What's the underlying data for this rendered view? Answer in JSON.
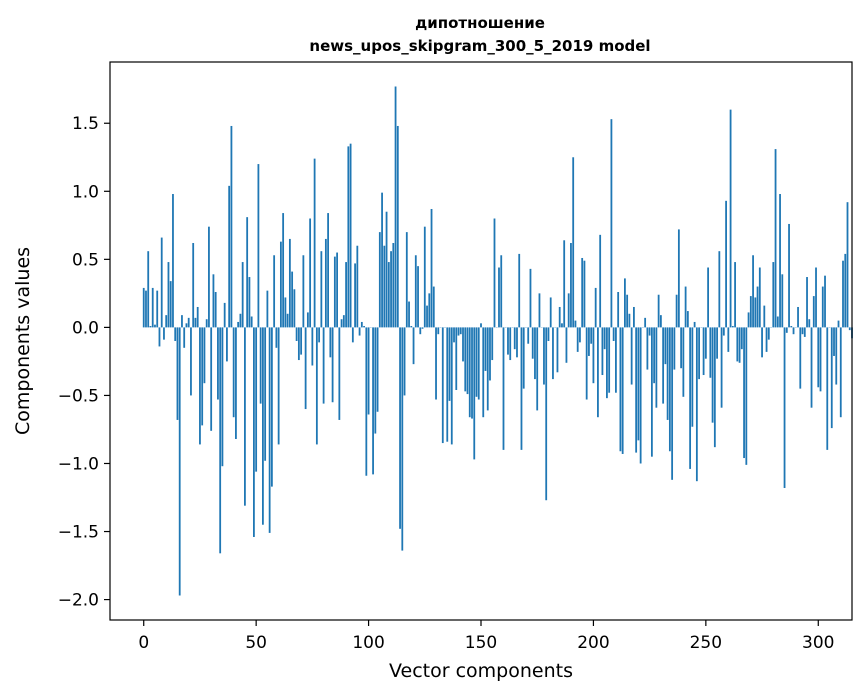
{
  "chart_data": {
    "type": "bar",
    "title_line1": "дипотношение",
    "title_line2": "news_upos_skipgram_300_5_2019 model",
    "xlabel": "Vector components",
    "ylabel": "Components values",
    "xlim": [
      -15,
      315
    ],
    "ylim": [
      -2.15,
      1.95
    ],
    "xticks": [
      0,
      50,
      100,
      150,
      200,
      250,
      300
    ],
    "xtick_labels": [
      "0",
      "50",
      "100",
      "150",
      "200",
      "250",
      "300"
    ],
    "yticks": [
      -2.0,
      -1.5,
      -1.0,
      -0.5,
      0.0,
      0.5,
      1.0,
      1.5
    ],
    "ytick_labels": [
      "−2.0",
      "−1.5",
      "−1.0",
      "−0.5",
      "0.0",
      "0.5",
      "1.0",
      "1.5"
    ],
    "bar_color": "#1f77b4",
    "grid": false,
    "legend": "none",
    "x_start": 0,
    "values": [
      0.29,
      0.27,
      0.56,
      0.01,
      0.29,
      0.02,
      0.27,
      -0.14,
      0.66,
      -0.09,
      0.09,
      0.48,
      0.34,
      0.98,
      -0.1,
      -0.68,
      -1.97,
      0.09,
      -0.15,
      0.03,
      0.07,
      -0.5,
      0.62,
      0.07,
      0.15,
      -0.86,
      -0.72,
      -0.41,
      0.06,
      0.74,
      -0.76,
      0.39,
      0.26,
      -0.53,
      -1.66,
      -1.02,
      0.18,
      -0.25,
      1.04,
      1.48,
      -0.66,
      -0.82,
      0.04,
      0.1,
      0.48,
      -1.31,
      0.81,
      0.37,
      0.08,
      -1.54,
      -1.06,
      1.2,
      -0.56,
      -1.45,
      -0.98,
      0.27,
      -1.51,
      -1.17,
      0.53,
      -0.15,
      -0.86,
      0.63,
      0.84,
      0.22,
      0.1,
      0.65,
      0.41,
      0.28,
      -0.1,
      -0.24,
      -0.2,
      0.53,
      -0.6,
      0.11,
      0.8,
      -0.28,
      1.24,
      -0.86,
      -0.11,
      0.56,
      -0.56,
      0.65,
      0.84,
      -0.22,
      -0.55,
      0.52,
      0.55,
      -0.68,
      0.06,
      0.09,
      0.48,
      1.33,
      1.35,
      -0.11,
      0.47,
      0.6,
      -0.06,
      0.04,
      0.01,
      -1.09,
      -0.64,
      0.0,
      -1.08,
      -0.78,
      -0.62,
      0.7,
      0.99,
      0.6,
      0.85,
      0.48,
      0.56,
      0.62,
      1.77,
      1.48,
      -1.48,
      -1.64,
      -0.5,
      0.7,
      0.19,
      0.01,
      -0.27,
      0.53,
      0.45,
      -0.05,
      -0.01,
      0.74,
      0.16,
      0.25,
      0.87,
      0.3,
      -0.53,
      -0.05,
      0.0,
      -0.85,
      0.0,
      -0.84,
      -0.54,
      -0.86,
      -0.11,
      -0.46,
      -0.06,
      -0.05,
      -0.25,
      -0.47,
      -0.49,
      -0.66,
      -0.67,
      -0.97,
      -0.51,
      -0.53,
      0.03,
      -0.66,
      -0.32,
      -0.61,
      -0.39,
      -0.24,
      0.8,
      0.0,
      0.44,
      0.53,
      -0.9,
      0.0,
      -0.2,
      -0.24,
      0.0,
      -0.16,
      -0.22,
      0.54,
      -0.9,
      -0.45,
      0.0,
      -0.12,
      0.43,
      -0.23,
      -0.38,
      -0.61,
      0.25,
      0.0,
      -0.42,
      -1.27,
      -0.1,
      0.22,
      -0.38,
      0.0,
      -0.33,
      0.15,
      0.03,
      0.64,
      -0.26,
      0.25,
      0.62,
      1.25,
      0.05,
      -0.18,
      -0.11,
      0.51,
      0.49,
      -0.53,
      -0.21,
      -0.12,
      -0.41,
      0.29,
      -0.66,
      0.68,
      -0.35,
      -0.16,
      -0.52,
      -0.48,
      1.53,
      -0.1,
      -0.48,
      0.26,
      -0.91,
      -0.93,
      0.36,
      0.24,
      0.1,
      -0.42,
      0.15,
      -0.92,
      -0.83,
      -1.0,
      0.0,
      0.07,
      -0.31,
      -0.06,
      -0.95,
      -0.41,
      -0.59,
      0.24,
      0.09,
      -0.56,
      -0.27,
      -0.68,
      -0.91,
      -1.12,
      -0.31,
      0.24,
      0.72,
      -0.3,
      -0.51,
      0.3,
      0.12,
      -1.04,
      -0.73,
      0.04,
      -1.13,
      -0.38,
      0.0,
      -0.35,
      -0.23,
      0.44,
      -0.37,
      -0.7,
      -0.88,
      -0.23,
      0.56,
      -0.59,
      -0.06,
      0.93,
      -0.18,
      1.6,
      0.01,
      0.48,
      -0.25,
      -0.26,
      -0.16,
      -0.96,
      -1.01,
      0.11,
      0.23,
      0.53,
      0.22,
      0.3,
      0.44,
      -0.22,
      0.16,
      -0.18,
      -0.09,
      0.0,
      0.48,
      1.31,
      0.08,
      0.98,
      0.39,
      -1.18,
      -0.04,
      0.76,
      0.01,
      -0.05,
      0.0,
      0.15,
      -0.45,
      -0.05,
      -0.07,
      0.37,
      0.06,
      -0.59,
      0.23,
      0.44,
      -0.44,
      -0.47,
      0.3,
      0.38,
      -0.9,
      0.0,
      -0.74,
      -0.21,
      -0.42,
      0.05,
      -0.66,
      0.49,
      0.54,
      0.92,
      -0.02,
      -0.08
    ]
  }
}
